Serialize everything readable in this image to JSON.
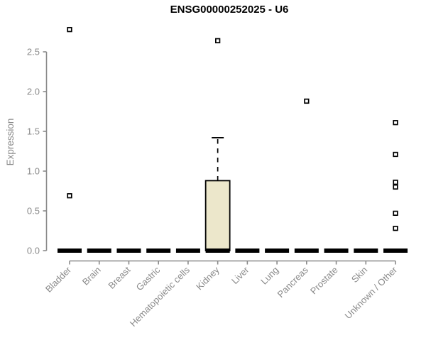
{
  "chart_data": {
    "type": "boxplot",
    "title": "ENSG00000252025 - U6",
    "xlabel": "",
    "ylabel": "Expression",
    "ylim": [
      0,
      2.5
    ],
    "yticks": [
      "0.0",
      "0.5",
      "1.0",
      "1.5",
      "2.0",
      "2.5"
    ],
    "grid": false,
    "legend": false,
    "categories": [
      "Bladder",
      "Brain",
      "Breast",
      "Gastric",
      "Hematopoietic cells",
      "Kidney",
      "Liver",
      "Lung",
      "Pancreas",
      "Prostate",
      "Skin",
      "Unknown / Other"
    ],
    "series": [
      {
        "category": "Bladder",
        "whisker_low": 0,
        "q1": 0,
        "median": 0,
        "q3": 0,
        "whisker_high": 0,
        "outliers": [
          0.69,
          2.78
        ]
      },
      {
        "category": "Brain",
        "whisker_low": 0,
        "q1": 0,
        "median": 0,
        "q3": 0,
        "whisker_high": 0,
        "outliers": []
      },
      {
        "category": "Breast",
        "whisker_low": 0,
        "q1": 0,
        "median": 0,
        "q3": 0,
        "whisker_high": 0,
        "outliers": []
      },
      {
        "category": "Gastric",
        "whisker_low": 0,
        "q1": 0,
        "median": 0,
        "q3": 0,
        "whisker_high": 0,
        "outliers": []
      },
      {
        "category": "Hematopoietic cells",
        "whisker_low": 0,
        "q1": 0,
        "median": 0,
        "q3": 0,
        "whisker_high": 0,
        "outliers": []
      },
      {
        "category": "Kidney",
        "whisker_low": 0,
        "q1": 0,
        "median": 0,
        "q3": 0.88,
        "whisker_high": 1.42,
        "outliers": [
          2.64
        ]
      },
      {
        "category": "Liver",
        "whisker_low": 0,
        "q1": 0,
        "median": 0,
        "q3": 0,
        "whisker_high": 0,
        "outliers": []
      },
      {
        "category": "Lung",
        "whisker_low": 0,
        "q1": 0,
        "median": 0,
        "q3": 0,
        "whisker_high": 0,
        "outliers": []
      },
      {
        "category": "Pancreas",
        "whisker_low": 0,
        "q1": 0,
        "median": 0,
        "q3": 0,
        "whisker_high": 0,
        "outliers": [
          1.88
        ]
      },
      {
        "category": "Prostate",
        "whisker_low": 0,
        "q1": 0,
        "median": 0,
        "q3": 0,
        "whisker_high": 0,
        "outliers": []
      },
      {
        "category": "Skin",
        "whisker_low": 0,
        "q1": 0,
        "median": 0,
        "q3": 0,
        "whisker_high": 0,
        "outliers": []
      },
      {
        "category": "Unknown / Other",
        "whisker_low": 0,
        "q1": 0,
        "median": 0,
        "q3": 0,
        "whisker_high": 0,
        "outliers": [
          0.28,
          0.47,
          0.8,
          0.86,
          1.21,
          1.61
        ]
      }
    ],
    "colors": {
      "background": "#ffffff",
      "box_fill": "#ece7cb",
      "box_border": "#000000",
      "median": "#000000",
      "whisker": "#000000",
      "outlier_border": "#000000",
      "outlier_fill": "#ffffff",
      "axis": "#8a8a8a",
      "tick_text": "#8a8a8a",
      "title_text": "#000000"
    }
  }
}
